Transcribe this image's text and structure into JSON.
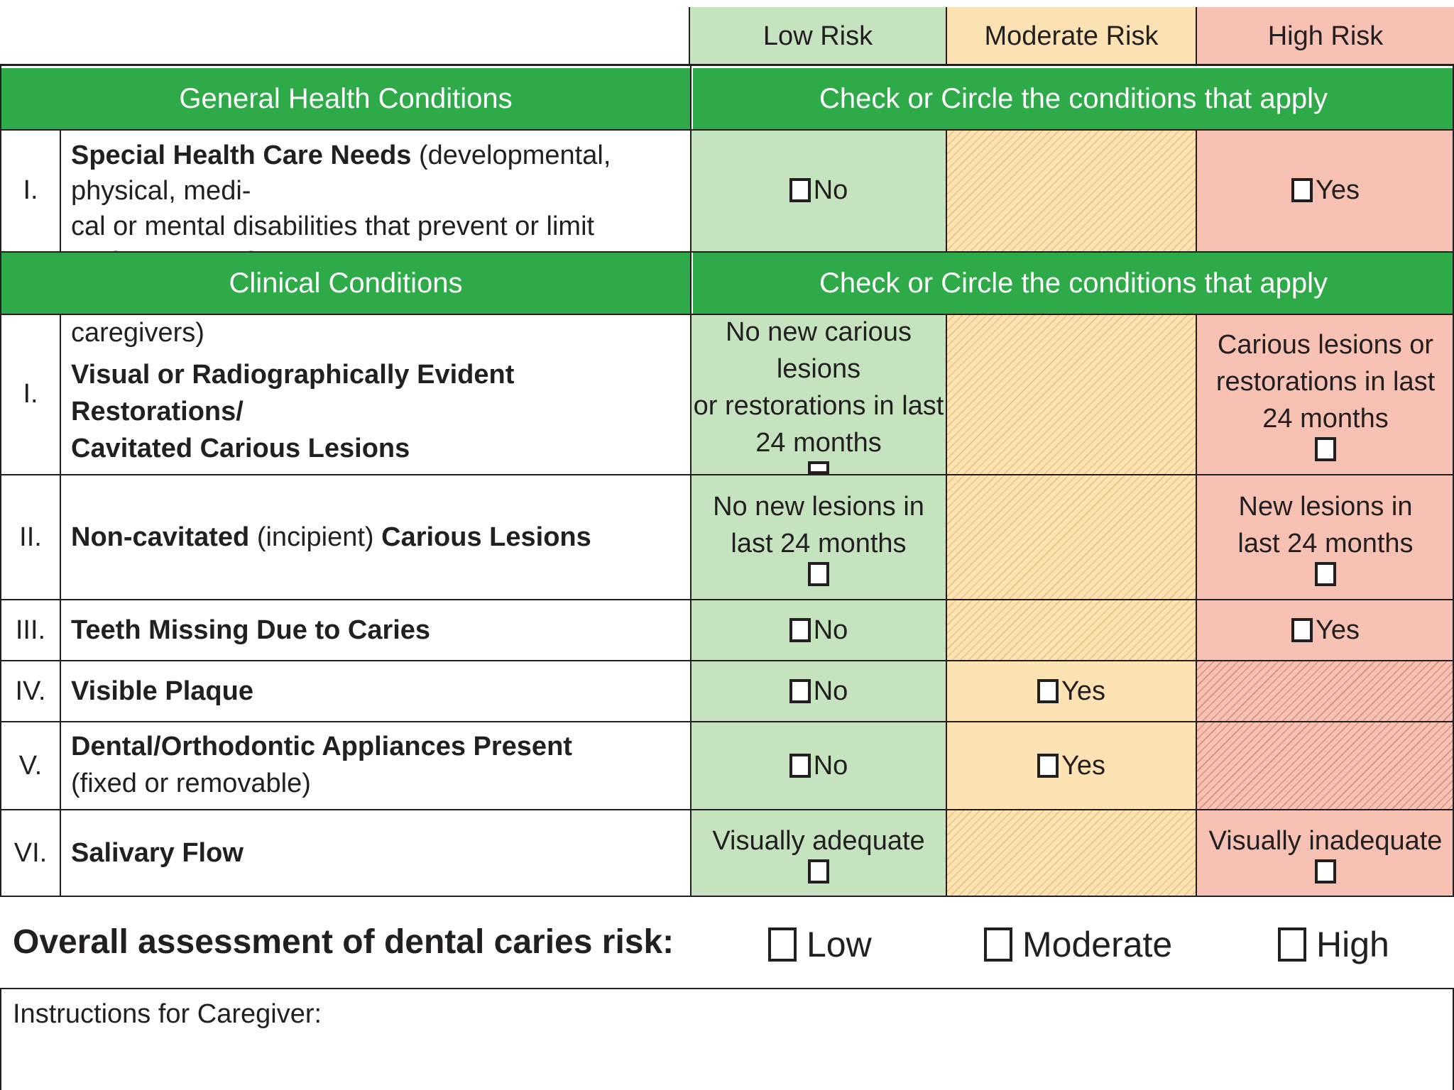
{
  "risk_headers": {
    "low": "Low Risk",
    "moderate": "Moderate Risk",
    "high": "High Risk"
  },
  "sections": {
    "general": {
      "title": "General Health Conditions",
      "instruction": "Check or Circle the conditions that apply"
    },
    "clinical": {
      "title": "Clinical Conditions",
      "instruction": "Check or Circle the conditions that apply"
    }
  },
  "rows": [
    {
      "roman": "I.",
      "title": "Special Health Care Needs",
      "note": " (developmental, physical, medi-",
      "line2": "cal or mental disabilities that prevent or limit performance of",
      "line3": "adequate oral health care by themselves or caregivers)",
      "low": "No",
      "high": "Yes"
    },
    {
      "roman": "I.",
      "line1": "Visual or Radiographically Evident Restorations/",
      "line2": "Cavitated Carious Lesions",
      "low1": "No new carious lesions",
      "low2": "or restorations in last",
      "low3": "24 months",
      "high1": "Carious lesions or",
      "high2": "restorations in last",
      "high3": "24 months"
    },
    {
      "roman": "II.",
      "part1": "Non-cavitated",
      "part2": " (incipient) ",
      "part3": "Carious Lesions",
      "low1": "No new lesions in",
      "low2": "last 24 months",
      "high1": "New lesions in",
      "high2": "last 24 months"
    },
    {
      "roman": "III.",
      "title": "Teeth Missing Due to Caries",
      "low": "No",
      "high": "Yes"
    },
    {
      "roman": "IV.",
      "title": "Visible Plaque",
      "low": "No",
      "moderate": "Yes"
    },
    {
      "roman": "V.",
      "title": "Dental/Orthodontic Appliances Present",
      "note": "(fixed or removable)",
      "low": "No",
      "moderate": "Yes"
    },
    {
      "roman": "VI.",
      "title": "Salivary Flow",
      "low": "Visually adequate",
      "high": "Visually inadequate"
    }
  ],
  "overall": {
    "label": "Overall assessment of dental caries risk:",
    "low": "Low",
    "moderate": "Moderate",
    "high": "High"
  },
  "instructions": {
    "label": "Instructions for Caregiver:"
  }
}
